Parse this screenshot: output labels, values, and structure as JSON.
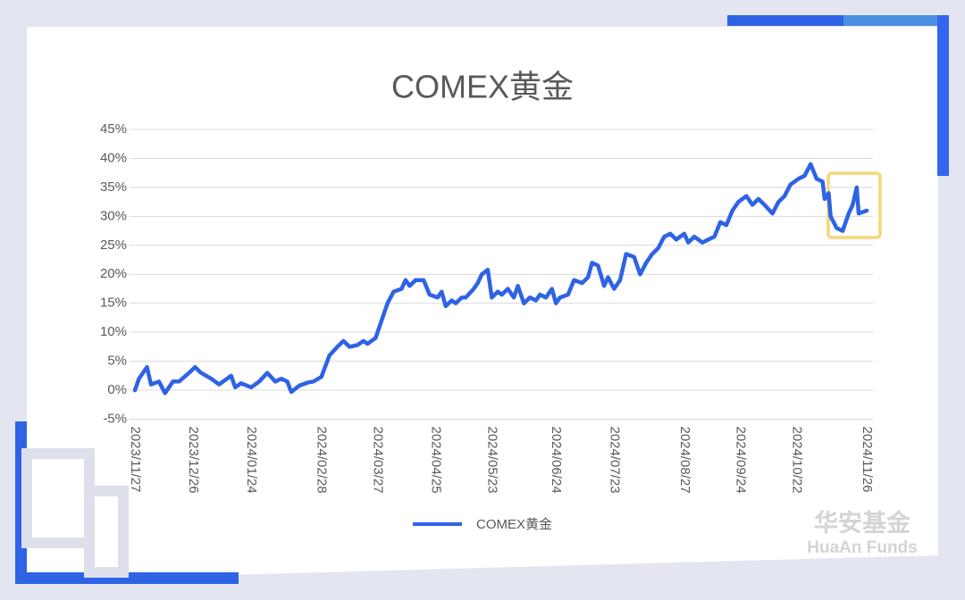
{
  "chart_data": {
    "type": "line",
    "title": "COMEX黄金",
    "x": [
      "2023/11/27",
      "2023/11/29",
      "2023/12/01",
      "2023/12/03",
      "2023/12/05",
      "2023/12/09",
      "2023/12/12",
      "2023/12/16",
      "2023/12/19",
      "2023/12/24",
      "2023/12/27",
      "2023/12/30",
      "2024/01/04",
      "2024/01/08",
      "2024/01/14",
      "2024/01/16",
      "2024/01/19",
      "2024/01/24",
      "2024/01/28",
      "2024/02/01",
      "2024/02/05",
      "2024/02/08",
      "2024/02/11",
      "2024/02/13",
      "2024/02/17",
      "2024/02/21",
      "2024/02/24",
      "2024/02/28",
      "2024/03/03",
      "2024/03/07",
      "2024/03/10",
      "2024/03/13",
      "2024/03/17",
      "2024/03/20",
      "2024/03/22",
      "2024/03/26",
      "2024/03/29",
      "2024/04/01",
      "2024/04/04",
      "2024/04/08",
      "2024/04/10",
      "2024/04/12",
      "2024/04/15",
      "2024/04/19",
      "2024/04/22",
      "2024/04/26",
      "2024/04/28",
      "2024/04/30",
      "2024/05/03",
      "2024/05/05",
      "2024/05/08",
      "2024/05/10",
      "2024/05/14",
      "2024/05/16",
      "2024/05/18",
      "2024/05/21",
      "2024/05/23",
      "2024/05/26",
      "2024/05/28",
      "2024/05/31",
      "2024/06/03",
      "2024/06/05",
      "2024/06/08",
      "2024/06/11",
      "2024/06/14",
      "2024/06/16",
      "2024/06/19",
      "2024/06/22",
      "2024/06/24",
      "2024/06/26",
      "2024/06/30",
      "2024/07/03",
      "2024/07/07",
      "2024/07/10",
      "2024/07/12",
      "2024/07/15",
      "2024/07/18",
      "2024/07/20",
      "2024/07/23",
      "2024/07/26",
      "2024/07/29",
      "2024/08/02",
      "2024/08/05",
      "2024/08/08",
      "2024/08/11",
      "2024/08/14",
      "2024/08/17",
      "2024/08/20",
      "2024/08/23",
      "2024/08/27",
      "2024/08/29",
      "2024/09/01",
      "2024/09/05",
      "2024/09/08",
      "2024/09/11",
      "2024/09/14",
      "2024/09/17",
      "2024/09/20",
      "2024/09/23",
      "2024/09/27",
      "2024/09/30",
      "2024/10/03",
      "2024/10/06",
      "2024/10/10",
      "2024/10/13",
      "2024/10/16",
      "2024/10/19",
      "2024/10/23",
      "2024/10/26",
      "2024/10/29",
      "2024/11/01",
      "2024/11/04",
      "2024/11/05",
      "2024/11/07",
      "2024/11/08",
      "2024/11/11",
      "2024/11/14",
      "2024/11/17",
      "2024/11/19",
      "2024/11/21",
      "2024/11/22",
      "2024/11/26"
    ],
    "series": [
      {
        "name": "COMEX黄金",
        "color": "#2f63e6",
        "values": [
          0,
          2,
          3,
          4,
          1,
          1.5,
          -0.5,
          1.5,
          1.5,
          3,
          4,
          3,
          2,
          1,
          2.5,
          0.5,
          1.2,
          0.5,
          1.5,
          3,
          1.5,
          2,
          1.5,
          -0.3,
          0.8,
          1.3,
          1.5,
          2.3,
          6,
          7.5,
          8.5,
          7.5,
          7.8,
          8.5,
          8,
          9,
          12,
          15,
          17,
          17.5,
          19,
          18,
          19,
          19,
          16.5,
          16,
          17,
          14.5,
          15.5,
          15,
          16,
          16,
          17.5,
          18.5,
          20,
          20.8,
          16,
          17,
          16.5,
          17.5,
          16,
          18,
          15,
          16,
          15.5,
          16.5,
          16,
          17.5,
          15,
          16,
          16.5,
          19,
          18.5,
          19.5,
          22,
          21.5,
          18,
          19.5,
          17.5,
          19,
          23.5,
          23,
          20,
          22,
          23.5,
          24.5,
          26.5,
          27,
          26,
          27,
          25.5,
          26.5,
          25.5,
          26,
          26.5,
          29,
          28.5,
          31,
          32.5,
          33.5,
          32,
          33,
          32,
          30.5,
          32.5,
          33.5,
          35.5,
          36.5,
          37,
          39,
          36.5,
          36,
          33,
          34,
          30,
          28,
          27.5,
          30.5,
          32,
          35,
          30.5,
          31
        ]
      }
    ],
    "xlim": [
      "2023/11/27",
      "2024/11/26"
    ],
    "xticks": [
      "2023/11/27",
      "2023/12/26",
      "2024/01/24",
      "2024/02/28",
      "2024/03/27",
      "2024/04/25",
      "2024/05/23",
      "2024/06/24",
      "2024/07/23",
      "2024/08/27",
      "2024/09/24",
      "2024/10/22",
      "2024/11/26"
    ],
    "ylim": [
      -5,
      45
    ],
    "yticks": [
      {
        "value": -5,
        "label": "-5%"
      },
      {
        "value": 0,
        "label": "0%"
      },
      {
        "value": 5,
        "label": "5%"
      },
      {
        "value": 10,
        "label": "10%"
      },
      {
        "value": 15,
        "label": "15%"
      },
      {
        "value": 20,
        "label": "20%"
      },
      {
        "value": 25,
        "label": "25%"
      },
      {
        "value": 30,
        "label": "30%"
      },
      {
        "value": 35,
        "label": "35%"
      },
      {
        "value": 40,
        "label": "40%"
      },
      {
        "value": 45,
        "label": "45%"
      }
    ],
    "grid": true,
    "legend": "bottom"
  },
  "watermark": {
    "cn": "华安基金",
    "en": "HuaAn Funds"
  }
}
